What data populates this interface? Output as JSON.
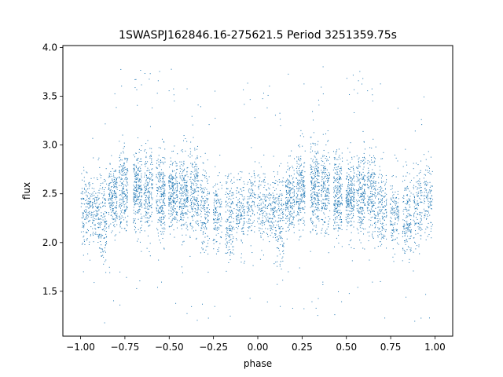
{
  "chart_data": {
    "type": "scatter",
    "title": "1SWASPJ162846.16-275621.5 Period 3251359.75s",
    "xlabel": "phase",
    "ylabel": "flux",
    "xlim": [
      -1.1,
      1.1
    ],
    "ylim": [
      1.04,
      4.02
    ],
    "x_ticks": [
      -1.0,
      -0.75,
      -0.5,
      -0.25,
      0.0,
      0.25,
      0.5,
      0.75,
      1.0
    ],
    "x_tick_labels": [
      "−1.00",
      "−0.75",
      "−0.50",
      "−0.25",
      "0.00",
      "0.25",
      "0.50",
      "0.75",
      "1.00"
    ],
    "y_ticks": [
      1.5,
      2.0,
      2.5,
      3.0,
      3.5,
      4.0
    ],
    "y_tick_labels": [
      "1.5",
      "2.0",
      "2.5",
      "3.0",
      "3.5",
      "4.0"
    ],
    "grid": false,
    "legend": "none",
    "marker_color": "#1f77b4",
    "phase_range": [
      -1.0,
      1.0
    ],
    "flux_median": 2.45,
    "flux_typical_range": [
      2.0,
      3.0
    ],
    "flux_extreme_range": [
      1.15,
      3.9
    ],
    "clusters": [
      {
        "phase": -0.98,
        "center": 2.35,
        "spread": 0.3,
        "count": 120
      },
      {
        "phase": -0.93,
        "center": 2.35,
        "spread": 0.25,
        "count": 120
      },
      {
        "phase": -0.88,
        "center": 2.25,
        "spread": 0.4,
        "count": 160
      },
      {
        "phase": -0.82,
        "center": 2.45,
        "spread": 0.3,
        "count": 200
      },
      {
        "phase": -0.76,
        "center": 2.55,
        "spread": 0.35,
        "count": 220
      },
      {
        "phase": -0.68,
        "center": 2.55,
        "spread": 0.35,
        "count": 260
      },
      {
        "phase": -0.62,
        "center": 2.55,
        "spread": 0.35,
        "count": 200
      },
      {
        "phase": -0.55,
        "center": 2.5,
        "spread": 0.35,
        "count": 240
      },
      {
        "phase": -0.48,
        "center": 2.5,
        "spread": 0.3,
        "count": 240
      },
      {
        "phase": -0.42,
        "center": 2.5,
        "spread": 0.35,
        "count": 220
      },
      {
        "phase": -0.36,
        "center": 2.5,
        "spread": 0.35,
        "count": 200
      },
      {
        "phase": -0.3,
        "center": 2.35,
        "spread": 0.35,
        "count": 160
      },
      {
        "phase": -0.23,
        "center": 2.3,
        "spread": 0.3,
        "count": 140
      },
      {
        "phase": -0.16,
        "center": 2.25,
        "spread": 0.35,
        "count": 160
      },
      {
        "phase": -0.1,
        "center": 2.35,
        "spread": 0.35,
        "count": 140
      },
      {
        "phase": -0.04,
        "center": 2.45,
        "spread": 0.3,
        "count": 120
      },
      {
        "phase": 0.02,
        "center": 2.35,
        "spread": 0.3,
        "count": 120
      },
      {
        "phase": 0.07,
        "center": 2.35,
        "spread": 0.25,
        "count": 120
      },
      {
        "phase": 0.12,
        "center": 2.25,
        "spread": 0.4,
        "count": 160
      },
      {
        "phase": 0.18,
        "center": 2.45,
        "spread": 0.3,
        "count": 200
      },
      {
        "phase": 0.24,
        "center": 2.55,
        "spread": 0.35,
        "count": 220
      },
      {
        "phase": 0.32,
        "center": 2.55,
        "spread": 0.35,
        "count": 260
      },
      {
        "phase": 0.38,
        "center": 2.55,
        "spread": 0.35,
        "count": 200
      },
      {
        "phase": 0.45,
        "center": 2.5,
        "spread": 0.35,
        "count": 240
      },
      {
        "phase": 0.52,
        "center": 2.5,
        "spread": 0.3,
        "count": 240
      },
      {
        "phase": 0.58,
        "center": 2.5,
        "spread": 0.35,
        "count": 220
      },
      {
        "phase": 0.64,
        "center": 2.5,
        "spread": 0.35,
        "count": 200
      },
      {
        "phase": 0.7,
        "center": 2.35,
        "spread": 0.35,
        "count": 160
      },
      {
        "phase": 0.77,
        "center": 2.3,
        "spread": 0.3,
        "count": 140
      },
      {
        "phase": 0.84,
        "center": 2.25,
        "spread": 0.35,
        "count": 160
      },
      {
        "phase": 0.9,
        "center": 2.35,
        "spread": 0.35,
        "count": 140
      },
      {
        "phase": 0.96,
        "center": 2.45,
        "spread": 0.3,
        "count": 120
      }
    ]
  }
}
